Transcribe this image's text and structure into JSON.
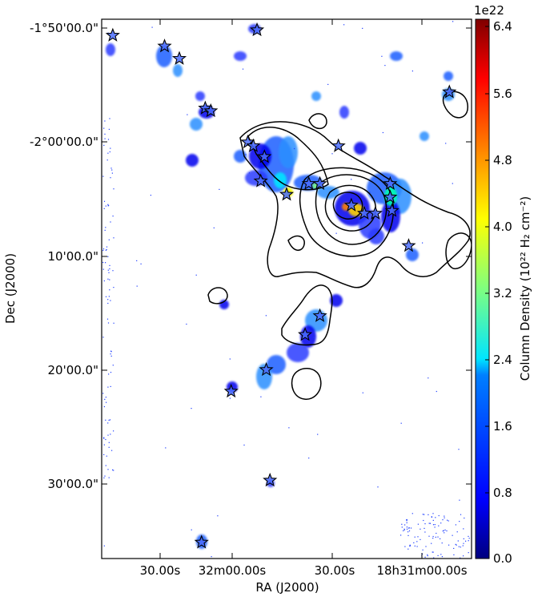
{
  "chart_data": {
    "type": "heatmap",
    "xlabel": "RA (J2000)",
    "ylabel": "Dec (J2000)",
    "x_ticks": [
      "30.00s",
      "32m00.00s",
      "30.00s",
      "18h31m00.00s"
    ],
    "y_ticks": [
      "-1°50'00.0\"",
      "-2°00'00.0\"",
      "10'00.0\"",
      "20'00.0\"",
      "30'00.0\""
    ],
    "colorbar": {
      "label": "Column Density (10²² H₂ cm⁻²)",
      "multiplier": "1e22",
      "ticks": [
        "6.4",
        "5.6",
        "4.8",
        "4.0",
        "3.2",
        "2.4",
        "1.6",
        "0.8",
        "0.0"
      ],
      "range": [
        0,
        6.6
      ],
      "colormap": [
        "#00007f",
        "#0000ff",
        "#007fff",
        "#00ffff",
        "#7fff7f",
        "#ffff00",
        "#ff7f00",
        "#ff0000",
        "#7f0000"
      ]
    },
    "contour_color": "#000000",
    "star_color": "#4a6cff",
    "sources": [
      {
        "x": 0.03,
        "y": 0.03
      },
      {
        "x": 0.17,
        "y": 0.05
      },
      {
        "x": 0.21,
        "y": 0.073
      },
      {
        "x": 0.28,
        "y": 0.165
      },
      {
        "x": 0.295,
        "y": 0.17
      },
      {
        "x": 0.42,
        "y": 0.02
      },
      {
        "x": 0.395,
        "y": 0.228
      },
      {
        "x": 0.41,
        "y": 0.235
      },
      {
        "x": 0.44,
        "y": 0.255
      },
      {
        "x": 0.43,
        "y": 0.3
      },
      {
        "x": 0.5,
        "y": 0.325
      },
      {
        "x": 0.56,
        "y": 0.305
      },
      {
        "x": 0.59,
        "y": 0.305
      },
      {
        "x": 0.64,
        "y": 0.235
      },
      {
        "x": 0.675,
        "y": 0.345
      },
      {
        "x": 0.71,
        "y": 0.36
      },
      {
        "x": 0.74,
        "y": 0.36
      },
      {
        "x": 0.78,
        "y": 0.305
      },
      {
        "x": 0.78,
        "y": 0.33
      },
      {
        "x": 0.785,
        "y": 0.355
      },
      {
        "x": 0.83,
        "y": 0.42
      },
      {
        "x": 0.94,
        "y": 0.135
      },
      {
        "x": 0.59,
        "y": 0.55
      },
      {
        "x": 0.55,
        "y": 0.585
      },
      {
        "x": 0.445,
        "y": 0.65
      },
      {
        "x": 0.35,
        "y": 0.69
      },
      {
        "x": 0.455,
        "y": 0.855
      },
      {
        "x": 0.27,
        "y": 0.97
      }
    ]
  }
}
